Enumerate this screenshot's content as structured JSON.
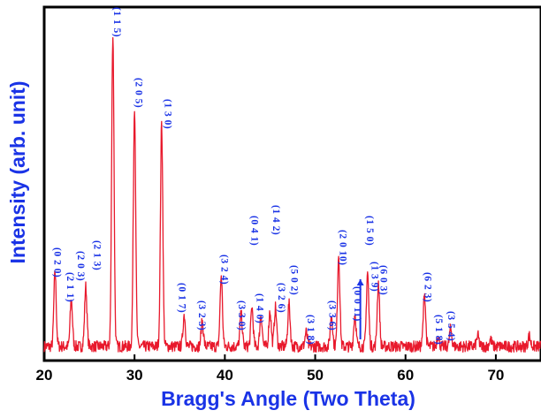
{
  "chart_data": {
    "type": "line",
    "title": "",
    "xlabel": "Bragg's Angle (Two Theta)",
    "ylabel": "Intensity (arb. unit)",
    "xlim": [
      20,
      75
    ],
    "ylim": [
      0,
      100
    ],
    "xticks": [
      20,
      30,
      40,
      50,
      60,
      70
    ],
    "yticks": [],
    "grid": false,
    "legend": "none",
    "colors": {
      "line": "#e8192c",
      "labels": "#1a33e6",
      "axes": "#000000"
    },
    "baseline": 4,
    "noise": 1.6,
    "peaks": [
      {
        "x": 21.2,
        "y": 25
      },
      {
        "x": 23.0,
        "y": 17
      },
      {
        "x": 24.6,
        "y": 21
      },
      {
        "x": 27.6,
        "y": 92
      },
      {
        "x": 30.0,
        "y": 72
      },
      {
        "x": 33.0,
        "y": 67
      },
      {
        "x": 35.5,
        "y": 13
      },
      {
        "x": 37.5,
        "y": 11
      },
      {
        "x": 39.6,
        "y": 24
      },
      {
        "x": 41.8,
        "y": 13
      },
      {
        "x": 43.0,
        "y": 15
      },
      {
        "x": 44.0,
        "y": 13
      },
      {
        "x": 45.0,
        "y": 14
      },
      {
        "x": 45.6,
        "y": 15
      },
      {
        "x": 47.1,
        "y": 16
      },
      {
        "x": 49.0,
        "y": 8
      },
      {
        "x": 51.8,
        "y": 13
      },
      {
        "x": 52.6,
        "y": 30
      },
      {
        "x": 54.4,
        "y": 13
      },
      {
        "x": 55.8,
        "y": 25
      },
      {
        "x": 57.0,
        "y": 22
      },
      {
        "x": 62.1,
        "y": 19
      },
      {
        "x": 63.6,
        "y": 7
      },
      {
        "x": 65.0,
        "y": 9
      },
      {
        "x": 68.0,
        "y": 7
      },
      {
        "x": 69.4,
        "y": 6
      },
      {
        "x": 73.7,
        "y": 7
      }
    ],
    "annotations": [
      {
        "text": "(0 2 0)",
        "x": 21.4,
        "y": 32
      },
      {
        "text": "(2 1 1)",
        "x": 22.8,
        "y": 25
      },
      {
        "text": "(2 0 3)",
        "x": 24.0,
        "y": 31
      },
      {
        "text": "(2 1 3)",
        "x": 25.8,
        "y": 34
      },
      {
        "text": "(1 1 5)",
        "x": 28.0,
        "y": 100
      },
      {
        "text": "(2 0 5)",
        "x": 30.4,
        "y": 80
      },
      {
        "text": "(1 3 0)",
        "x": 33.6,
        "y": 74
      },
      {
        "text": "(0 1 7)",
        "x": 35.2,
        "y": 22
      },
      {
        "text": "(3 2 3)",
        "x": 37.4,
        "y": 17
      },
      {
        "text": "(3 2 4)",
        "x": 39.9,
        "y": 30
      },
      {
        "text": "(3 3 0)",
        "x": 41.8,
        "y": 17
      },
      {
        "text": "(1 4 0)",
        "x": 43.8,
        "y": 19
      },
      {
        "text": "(0 4 1)",
        "x": 43.2,
        "y": 41
      },
      {
        "text": "(1 4 2)",
        "x": 45.6,
        "y": 44
      },
      {
        "text": "(3 2 6)",
        "x": 46.2,
        "y": 22
      },
      {
        "text": "(5 0 2)",
        "x": 47.6,
        "y": 27
      },
      {
        "text": "(3 1 8)",
        "x": 49.4,
        "y": 13
      },
      {
        "text": "(3 3 6)",
        "x": 51.8,
        "y": 17
      },
      {
        "text": "(2 0 10)",
        "x": 53.0,
        "y": 37
      },
      {
        "text": "(0 0 11)",
        "x": 54.6,
        "y": 21
      },
      {
        "text": "(1 5 0)",
        "x": 56.0,
        "y": 41
      },
      {
        "text": "(1 3 9)",
        "x": 56.5,
        "y": 28
      },
      {
        "text": "(6 0 3)",
        "x": 57.5,
        "y": 27
      },
      {
        "text": "(6 2 3)",
        "x": 62.4,
        "y": 25
      },
      {
        "text": "(5 1 8)",
        "x": 63.6,
        "y": 13
      },
      {
        "text": "(3 5 4)",
        "x": 65.0,
        "y": 14
      }
    ]
  }
}
